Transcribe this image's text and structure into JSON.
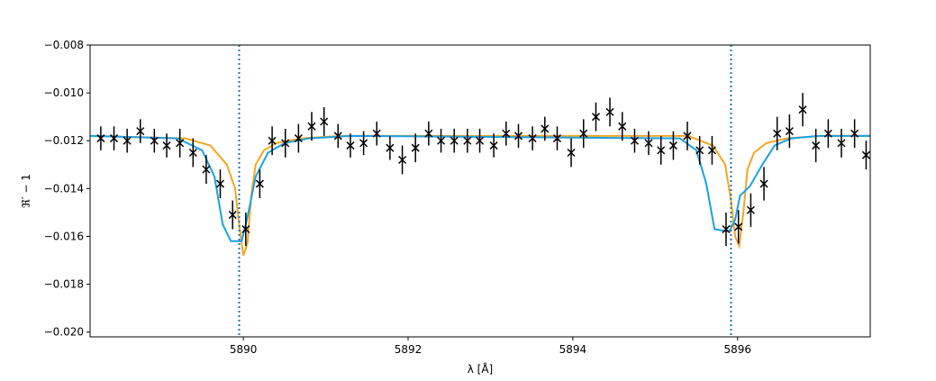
{
  "chart_data": {
    "type": "errorbar",
    "xlabel": "λ [Å]",
    "ylabel": "ℜ′ − 1",
    "xlim": [
      5888.14,
      5897.61
    ],
    "ylim": [
      -0.0202,
      -0.008
    ],
    "xticks": [
      5890,
      5892,
      5894,
      5896
    ],
    "yticks": [
      {
        "value": -0.02,
        "label": "−0.020"
      },
      {
        "value": -0.018,
        "label": "−0.018"
      },
      {
        "value": -0.016,
        "label": "−0.016"
      },
      {
        "value": -0.014,
        "label": "−0.014"
      },
      {
        "value": -0.012,
        "label": "−0.012"
      },
      {
        "value": -0.01,
        "label": "−0.010"
      },
      {
        "value": -0.008,
        "label": "−0.008"
      }
    ],
    "vlines": [
      5889.95,
      5895.92
    ],
    "vline_color": "#1f77b4",
    "binned": {
      "color": "#000000",
      "x": [
        5888.27,
        5888.43,
        5888.59,
        5888.75,
        5888.92,
        5889.07,
        5889.23,
        5889.39,
        5889.55,
        5889.72,
        5889.87,
        5890.03,
        5890.2,
        5890.35,
        5890.51,
        5890.67,
        5890.83,
        5890.98,
        5891.15,
        5891.3,
        5891.46,
        5891.62,
        5891.78,
        5891.93,
        5892.09,
        5892.25,
        5892.4,
        5892.56,
        5892.72,
        5892.87,
        5893.04,
        5893.19,
        5893.34,
        5893.51,
        5893.66,
        5893.81,
        5893.98,
        5894.13,
        5894.28,
        5894.45,
        5894.6,
        5894.75,
        5894.92,
        5895.07,
        5895.22,
        5895.39,
        5895.54,
        5895.69,
        5895.86,
        5896.01,
        5896.16,
        5896.32,
        5896.48,
        5896.63,
        5896.79,
        5896.95,
        5897.1,
        5897.26,
        5897.42,
        5897.56
      ],
      "values": [
        -0.0119,
        -0.0119,
        -0.012,
        -0.0116,
        -0.012,
        -0.0122,
        -0.0121,
        -0.0125,
        -0.0132,
        -0.0138,
        -0.0151,
        -0.0157,
        -0.0138,
        -0.012,
        -0.0121,
        -0.0119,
        -0.0114,
        -0.0112,
        -0.0118,
        -0.0122,
        -0.0121,
        -0.0117,
        -0.0123,
        -0.0128,
        -0.0123,
        -0.0117,
        -0.012,
        -0.012,
        -0.012,
        -0.012,
        -0.0122,
        -0.0117,
        -0.0118,
        -0.0119,
        -0.0115,
        -0.0119,
        -0.0125,
        -0.0117,
        -0.011,
        -0.0108,
        -0.0114,
        -0.012,
        -0.0121,
        -0.0124,
        -0.0122,
        -0.0118,
        -0.0124,
        -0.0124,
        -0.0157,
        -0.0156,
        -0.0149,
        -0.0138,
        -0.0117,
        -0.0116,
        -0.0107,
        -0.0122,
        -0.0117,
        -0.0121,
        -0.0117,
        -0.0126
      ],
      "yerr": [
        0.0005,
        0.0005,
        0.0005,
        0.0005,
        0.0005,
        0.0005,
        0.0006,
        0.0006,
        0.0006,
        0.0006,
        0.0006,
        0.0007,
        0.0006,
        0.0006,
        0.0006,
        0.0006,
        0.0006,
        0.0006,
        0.0005,
        0.0005,
        0.0005,
        0.0005,
        0.0005,
        0.0006,
        0.0006,
        0.0005,
        0.0005,
        0.0005,
        0.0005,
        0.0005,
        0.0005,
        0.0005,
        0.0005,
        0.0005,
        0.0005,
        0.0005,
        0.0006,
        0.0006,
        0.0006,
        0.0006,
        0.0006,
        0.0005,
        0.0005,
        0.0006,
        0.0006,
        0.0006,
        0.0006,
        0.0006,
        0.0007,
        0.0007,
        0.0007,
        0.0007,
        0.0007,
        0.0007,
        0.0007,
        0.0007,
        0.0006,
        0.0006,
        0.0006,
        0.0006
      ]
    },
    "models": [
      {
        "color": "#f5a623",
        "x": [
          5888.14,
          5889.3,
          5889.6,
          5889.8,
          5889.9,
          5889.95,
          5890.0,
          5890.05,
          5890.1,
          5890.15,
          5890.25,
          5890.4,
          5890.7,
          5891.2,
          5895.4,
          5895.7,
          5895.85,
          5895.92,
          5895.97,
          5896.02,
          5896.07,
          5896.12,
          5896.2,
          5896.35,
          5896.6,
          5897.0,
          5897.61
        ],
        "values": [
          -0.0118,
          -0.0119,
          -0.0122,
          -0.013,
          -0.014,
          -0.0155,
          -0.0168,
          -0.0163,
          -0.0142,
          -0.013,
          -0.0124,
          -0.0121,
          -0.0119,
          -0.0118,
          -0.0118,
          -0.0122,
          -0.013,
          -0.0145,
          -0.016,
          -0.0164,
          -0.015,
          -0.0132,
          -0.0125,
          -0.0121,
          -0.0119,
          -0.0118,
          -0.0118
        ]
      },
      {
        "color": "#1ba1e2",
        "x": [
          5888.14,
          5889.2,
          5889.5,
          5889.65,
          5889.75,
          5889.85,
          5889.98,
          5890.05,
          5890.15,
          5890.3,
          5890.5,
          5890.8,
          5891.3,
          5895.3,
          5895.5,
          5895.62,
          5895.72,
          5895.9,
          5895.97,
          5896.03,
          5896.15,
          5896.3,
          5896.45,
          5896.65,
          5897.0,
          5897.61
        ],
        "values": [
          -0.0118,
          -0.0119,
          -0.0124,
          -0.0135,
          -0.0155,
          -0.0162,
          -0.0162,
          -0.0152,
          -0.0135,
          -0.0125,
          -0.0121,
          -0.0119,
          -0.0118,
          -0.0119,
          -0.0124,
          -0.0138,
          -0.0157,
          -0.0158,
          -0.0153,
          -0.0143,
          -0.0139,
          -0.013,
          -0.0122,
          -0.0119,
          -0.0118,
          -0.0118
        ]
      }
    ]
  }
}
